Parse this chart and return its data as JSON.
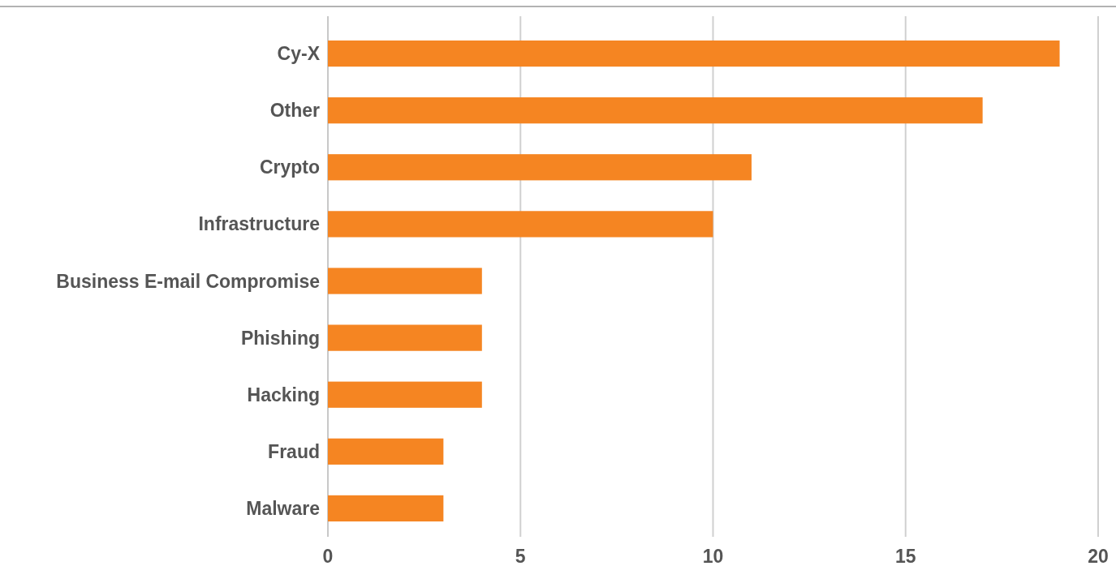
{
  "chart_data": {
    "type": "bar",
    "orientation": "horizontal",
    "categories": [
      "Cy-X",
      "Other",
      "Crypto",
      "Infrastructure",
      "Business E-mail Compromise",
      "Phishing",
      "Hacking",
      "Fraud",
      "Malware"
    ],
    "values": [
      19,
      17,
      11,
      10,
      4,
      4,
      4,
      3,
      3
    ],
    "color": "#f58522",
    "xlim": [
      0,
      20
    ],
    "xticks": [
      0,
      5,
      10,
      15,
      20
    ],
    "grid": "x"
  }
}
